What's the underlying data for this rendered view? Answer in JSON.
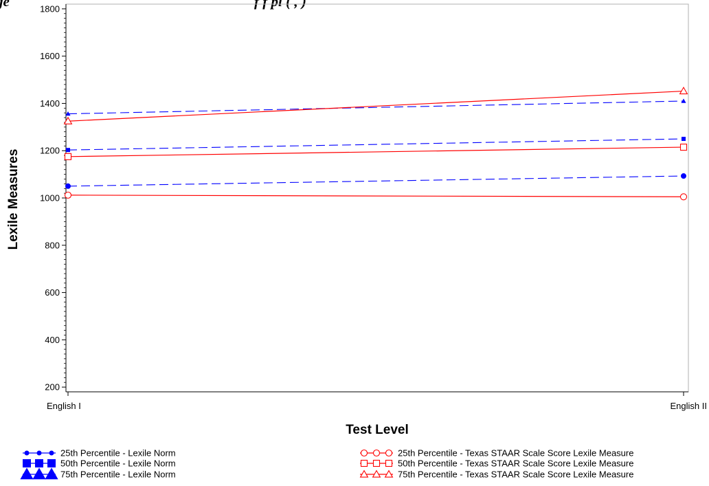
{
  "chart_data": {
    "type": "line",
    "title": "",
    "title_fragment": "ge",
    "title_fragment_2": "f    f    pl  (  ,    )",
    "xlabel": "Test Level",
    "ylabel": "Lexile Measures",
    "categories": [
      "English I",
      "English II"
    ],
    "ylim": [
      180,
      1820
    ],
    "yticks": [
      200,
      400,
      600,
      800,
      1000,
      1200,
      1400,
      1600,
      1800
    ],
    "grid": false,
    "legend_position": "bottom",
    "series": [
      {
        "name": "25th Percentile - Lexile Norm",
        "values": [
          1050,
          1093
        ],
        "color": "#0000ff",
        "dash": "dashed",
        "marker": "filled-circle"
      },
      {
        "name": "50th Percentile - Lexile Norm",
        "values": [
          1203,
          1250
        ],
        "color": "#0000ff",
        "dash": "dashed",
        "marker": "filled-square"
      },
      {
        "name": "75th Percentile - Lexile Norm",
        "values": [
          1356,
          1410
        ],
        "color": "#0000ff",
        "dash": "dashed",
        "marker": "filled-triangle"
      },
      {
        "name": "25th Percentile - Texas STAAR Scale Score Lexile Measure",
        "values": [
          1012,
          1005
        ],
        "color": "#ff0000",
        "dash": "solid",
        "marker": "open-circle"
      },
      {
        "name": "50th Percentile - Texas STAAR Scale Score Lexile Measure",
        "values": [
          1175,
          1215
        ],
        "color": "#ff0000",
        "dash": "solid",
        "marker": "open-square"
      },
      {
        "name": "75th Percentile - Texas STAAR  Scale Score Lexile Measure",
        "values": [
          1325,
          1452
        ],
        "color": "#ff0000",
        "dash": "solid",
        "marker": "open-triangle"
      }
    ]
  }
}
